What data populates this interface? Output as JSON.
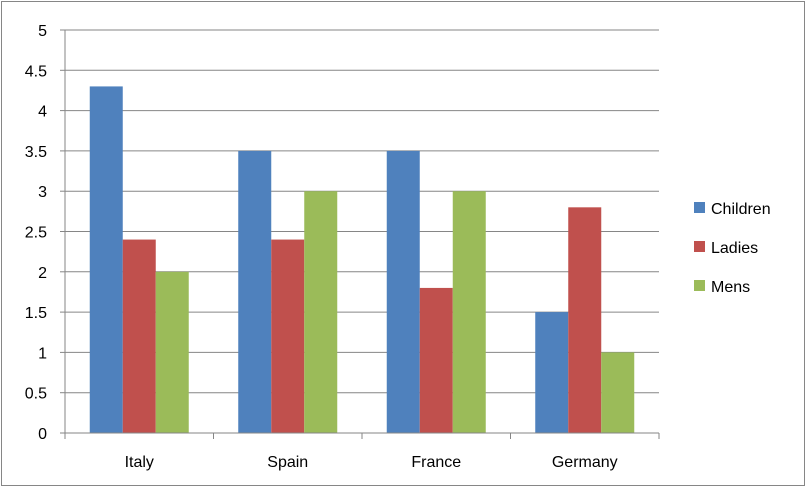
{
  "chart_data": {
    "type": "bar",
    "categories": [
      "Italy",
      "Spain",
      "France",
      "Germany"
    ],
    "series": [
      {
        "name": "Children",
        "color": "#4F81BD",
        "values": [
          4.3,
          3.5,
          3.5,
          1.5
        ]
      },
      {
        "name": "Ladies",
        "color": "#C0504D",
        "values": [
          2.4,
          2.4,
          1.8,
          2.8
        ]
      },
      {
        "name": "Mens",
        "color": "#9BBB59",
        "values": [
          2.0,
          3.0,
          3.0,
          1.0
        ]
      }
    ],
    "title": "",
    "xlabel": "",
    "ylabel": "",
    "ylim": [
      0,
      5
    ],
    "yticks": [
      "0",
      "0.5",
      "1",
      "1.5",
      "2",
      "2.5",
      "3",
      "3.5",
      "4",
      "4.5",
      "5"
    ],
    "grid": true,
    "legend": "right"
  }
}
